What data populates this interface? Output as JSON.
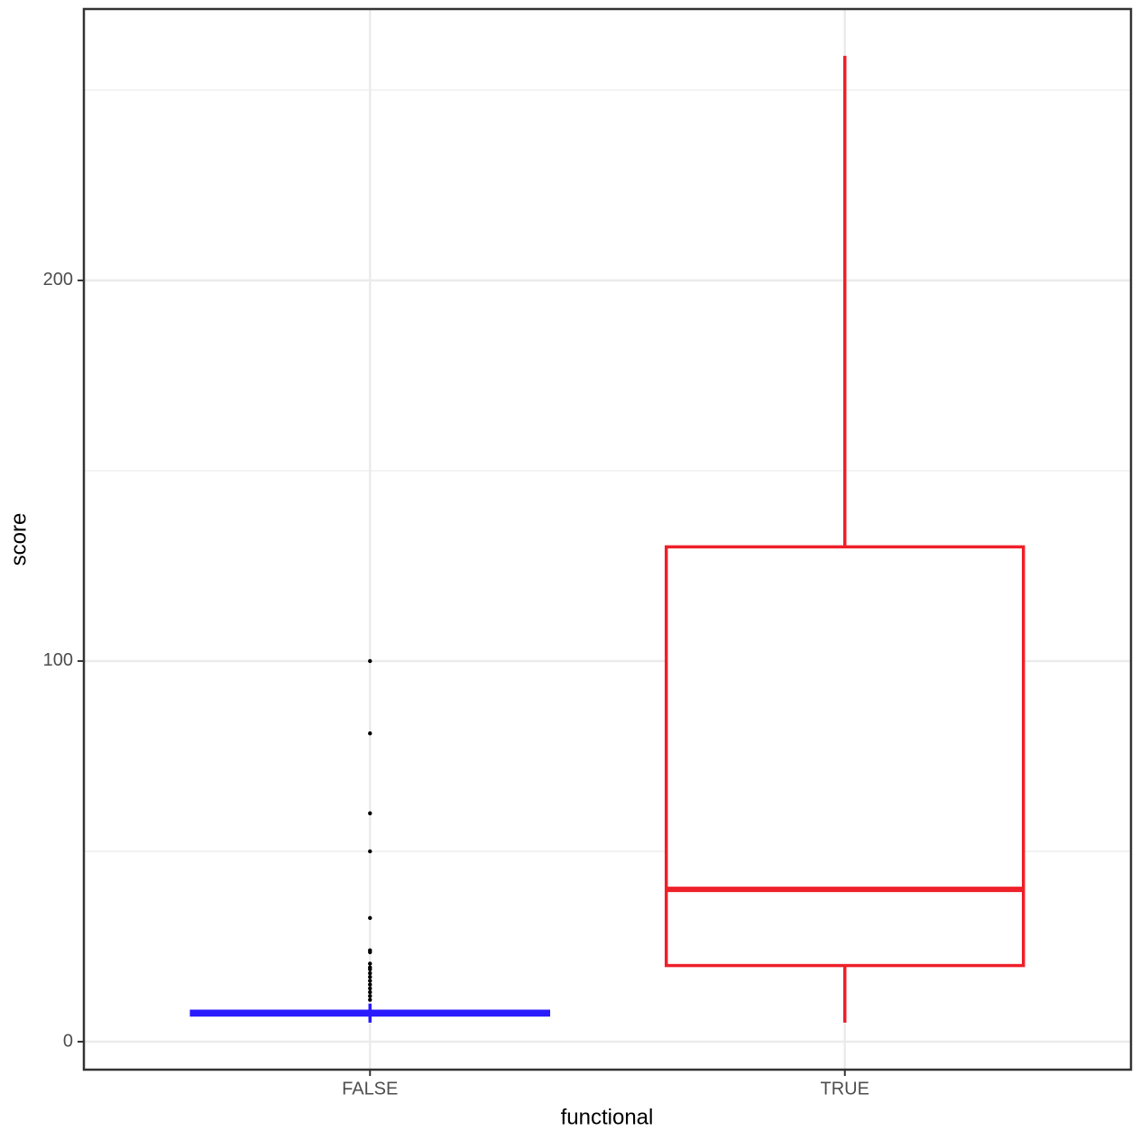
{
  "chart_data": {
    "type": "box",
    "x_label": "functional",
    "y_label": "score",
    "categories": [
      "FALSE",
      "TRUE"
    ],
    "boxes": [
      {
        "whisker_low": 5,
        "q1": 7,
        "median": 7.5,
        "q3": 8,
        "whisker_high": 10,
        "color": "#2b1bff",
        "outliers": [
          100,
          81,
          60,
          50,
          32.5,
          24,
          23.5,
          20.5,
          19.5,
          19,
          18,
          17,
          16,
          15,
          14,
          13,
          12,
          11
        ]
      },
      {
        "whisker_low": 5,
        "q1": 20,
        "median": 40,
        "q3": 130,
        "whisker_high": 259,
        "color": "#ee2029",
        "outliers": []
      }
    ],
    "ylim": [
      -7.35,
      271.3
    ],
    "yticks": [
      0,
      100,
      200
    ],
    "minor_yticks": [
      50,
      150,
      250
    ],
    "grid": true
  }
}
